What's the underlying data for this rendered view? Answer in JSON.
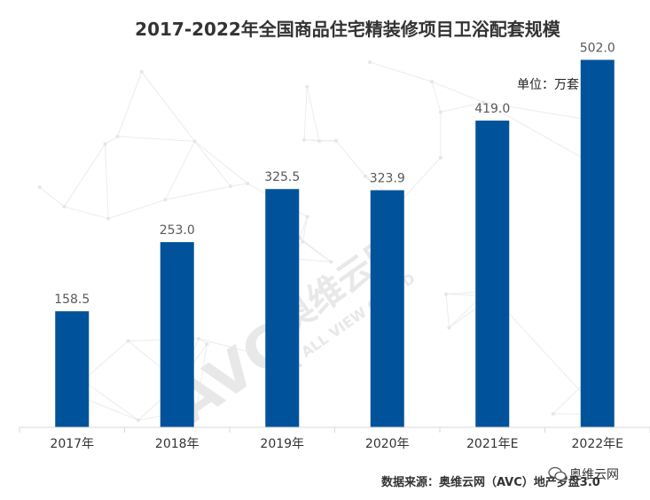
{
  "chart_data": {
    "type": "bar",
    "title": "2017-2022年全国商品住宅精装修项目卫浴配套规模",
    "unit_label": "单位：万套",
    "categories": [
      "2017年",
      "2018年",
      "2019年",
      "2020年",
      "2021年E",
      "2022年E"
    ],
    "values": [
      158.5,
      253.0,
      325.5,
      323.9,
      419.0,
      502.0
    ],
    "value_labels": [
      "158.5",
      "253.0",
      "325.5",
      "323.9",
      "419.0",
      "502.0"
    ],
    "ylim": [
      0,
      545
    ],
    "grid": false,
    "bar_color": "#00539b",
    "source": "数据来源：奥维云网（AVC）地产罗盘3.0",
    "brand": "奥维云网",
    "watermark": [
      "AVC",
      "奥维云网",
      "ALL VIEW CLOUD"
    ]
  }
}
